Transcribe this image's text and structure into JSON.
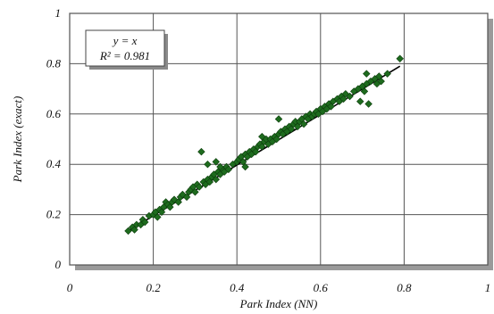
{
  "chart_data": {
    "type": "scatter",
    "xlabel": "Park Index (NN)",
    "ylabel": "Park Index (exact)",
    "xlim": [
      0,
      1
    ],
    "ylim": [
      0,
      1
    ],
    "x_ticks": [
      0,
      0.2,
      0.4,
      0.6,
      0.8,
      1
    ],
    "y_ticks": [
      0,
      0.2,
      0.4,
      0.6,
      0.8,
      1
    ],
    "x_tick_labels": [
      "0",
      "0.2",
      "0.4",
      "0.6",
      "0.8",
      "1"
    ],
    "y_tick_labels": [
      "0",
      "0.2",
      "0.4",
      "0.6",
      "0.8",
      "1"
    ],
    "grid": true,
    "marker_color": "#1e6b1e",
    "fit_line": {
      "x": [
        0.14,
        0.79
      ],
      "y": [
        0.135,
        0.79
      ]
    },
    "annotation": {
      "line1": "y = x",
      "line2": "R² = 0.981"
    },
    "points": [
      [
        0.14,
        0.135
      ],
      [
        0.15,
        0.15
      ],
      [
        0.155,
        0.14
      ],
      [
        0.16,
        0.16
      ],
      [
        0.17,
        0.16
      ],
      [
        0.175,
        0.18
      ],
      [
        0.18,
        0.17
      ],
      [
        0.19,
        0.195
      ],
      [
        0.2,
        0.2
      ],
      [
        0.205,
        0.21
      ],
      [
        0.21,
        0.19
      ],
      [
        0.215,
        0.22
      ],
      [
        0.22,
        0.21
      ],
      [
        0.225,
        0.23
      ],
      [
        0.23,
        0.25
      ],
      [
        0.235,
        0.24
      ],
      [
        0.24,
        0.23
      ],
      [
        0.245,
        0.25
      ],
      [
        0.25,
        0.26
      ],
      [
        0.26,
        0.25
      ],
      [
        0.265,
        0.27
      ],
      [
        0.27,
        0.28
      ],
      [
        0.28,
        0.27
      ],
      [
        0.285,
        0.29
      ],
      [
        0.29,
        0.3
      ],
      [
        0.295,
        0.31
      ],
      [
        0.3,
        0.29
      ],
      [
        0.305,
        0.32
      ],
      [
        0.31,
        0.31
      ],
      [
        0.315,
        0.45
      ],
      [
        0.32,
        0.33
      ],
      [
        0.325,
        0.32
      ],
      [
        0.33,
        0.34
      ],
      [
        0.335,
        0.33
      ],
      [
        0.34,
        0.35
      ],
      [
        0.345,
        0.36
      ],
      [
        0.35,
        0.34
      ],
      [
        0.355,
        0.37
      ],
      [
        0.36,
        0.36
      ],
      [
        0.365,
        0.38
      ],
      [
        0.37,
        0.37
      ],
      [
        0.375,
        0.39
      ],
      [
        0.33,
        0.4
      ],
      [
        0.35,
        0.41
      ],
      [
        0.36,
        0.39
      ],
      [
        0.38,
        0.38
      ],
      [
        0.39,
        0.4
      ],
      [
        0.4,
        0.41
      ],
      [
        0.405,
        0.42
      ],
      [
        0.41,
        0.43
      ],
      [
        0.415,
        0.41
      ],
      [
        0.42,
        0.44
      ],
      [
        0.425,
        0.43
      ],
      [
        0.43,
        0.45
      ],
      [
        0.435,
        0.44
      ],
      [
        0.44,
        0.46
      ],
      [
        0.445,
        0.45
      ],
      [
        0.45,
        0.47
      ],
      [
        0.455,
        0.48
      ],
      [
        0.46,
        0.47
      ],
      [
        0.465,
        0.49
      ],
      [
        0.47,
        0.5
      ],
      [
        0.475,
        0.48
      ],
      [
        0.48,
        0.5
      ],
      [
        0.485,
        0.49
      ],
      [
        0.49,
        0.51
      ],
      [
        0.495,
        0.5
      ],
      [
        0.5,
        0.52
      ],
      [
        0.505,
        0.53
      ],
      [
        0.51,
        0.52
      ],
      [
        0.515,
        0.54
      ],
      [
        0.52,
        0.53
      ],
      [
        0.525,
        0.55
      ],
      [
        0.53,
        0.54
      ],
      [
        0.535,
        0.56
      ],
      [
        0.54,
        0.57
      ],
      [
        0.545,
        0.55
      ],
      [
        0.55,
        0.57
      ],
      [
        0.555,
        0.58
      ],
      [
        0.56,
        0.56
      ],
      [
        0.565,
        0.59
      ],
      [
        0.57,
        0.58
      ],
      [
        0.575,
        0.6
      ],
      [
        0.58,
        0.59
      ],
      [
        0.585,
        0.6
      ],
      [
        0.59,
        0.61
      ],
      [
        0.595,
        0.6
      ],
      [
        0.6,
        0.62
      ],
      [
        0.605,
        0.61
      ],
      [
        0.61,
        0.63
      ],
      [
        0.615,
        0.62
      ],
      [
        0.62,
        0.64
      ],
      [
        0.625,
        0.63
      ],
      [
        0.63,
        0.65
      ],
      [
        0.64,
        0.66
      ],
      [
        0.645,
        0.65
      ],
      [
        0.65,
        0.67
      ],
      [
        0.655,
        0.66
      ],
      [
        0.66,
        0.68
      ],
      [
        0.67,
        0.67
      ],
      [
        0.68,
        0.69
      ],
      [
        0.69,
        0.7
      ],
      [
        0.695,
        0.65
      ],
      [
        0.7,
        0.71
      ],
      [
        0.705,
        0.69
      ],
      [
        0.71,
        0.72
      ],
      [
        0.715,
        0.64
      ],
      [
        0.72,
        0.73
      ],
      [
        0.73,
        0.74
      ],
      [
        0.735,
        0.72
      ],
      [
        0.74,
        0.75
      ],
      [
        0.745,
        0.73
      ],
      [
        0.71,
        0.76
      ],
      [
        0.76,
        0.76
      ],
      [
        0.79,
        0.82
      ],
      [
        0.5,
        0.58
      ],
      [
        0.46,
        0.51
      ],
      [
        0.42,
        0.39
      ]
    ]
  }
}
